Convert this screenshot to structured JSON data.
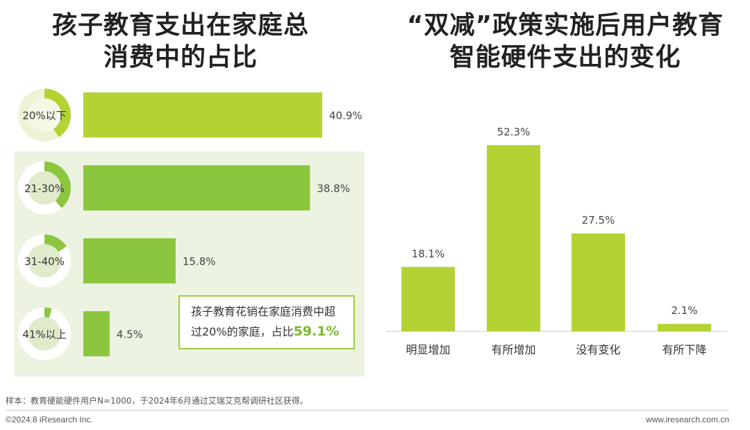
{
  "left_title": [
    "孩子教育支出在家庭总",
    "消费中的占比"
  ],
  "right_title": [
    "“双减”政策实施后用户教育",
    "智能硬件支出的变化"
  ],
  "callout": {
    "line1": "孩子教育花销在家庭消费中超",
    "line2_prefix": "过20%的家庭，占比",
    "value": "59.1%"
  },
  "footnote": "样本：教育硬能硬件用户N=1000，于2024年6月通过艾瑞艾克帮调研社区获得。",
  "copyright": "©2024.8 iResearch Inc.",
  "website": "www.iresearch.com.cn",
  "colors": {
    "bar_top": "#b3d334",
    "bar_green": "#8cc63f",
    "donut_ring_light": "#eef3d6",
    "donut_ring_green": "#e0ebcc",
    "highlight_bg": "#ecf3e0",
    "accent": "#7cb82f"
  },
  "chart_data": [
    {
      "type": "bar",
      "orientation": "horizontal",
      "categories": [
        "20%以下",
        "21-30%",
        "31-40%",
        "41%以上"
      ],
      "values": [
        40.9,
        38.8,
        15.8,
        4.5
      ],
      "labels": [
        "40.9%",
        "38.8%",
        "15.8%",
        "4.5%"
      ],
      "title": "孩子教育支出在家庭总消费中的占比"
    },
    {
      "type": "bar",
      "categories": [
        "明显增加",
        "有所增加",
        "没有变化",
        "有所下降"
      ],
      "values": [
        18.1,
        52.3,
        27.5,
        2.1
      ],
      "labels": [
        "18.1%",
        "52.3%",
        "27.5%",
        "2.1%"
      ],
      "title": "“双减”政策实施后用户教育智能硬件支出的变化"
    }
  ]
}
